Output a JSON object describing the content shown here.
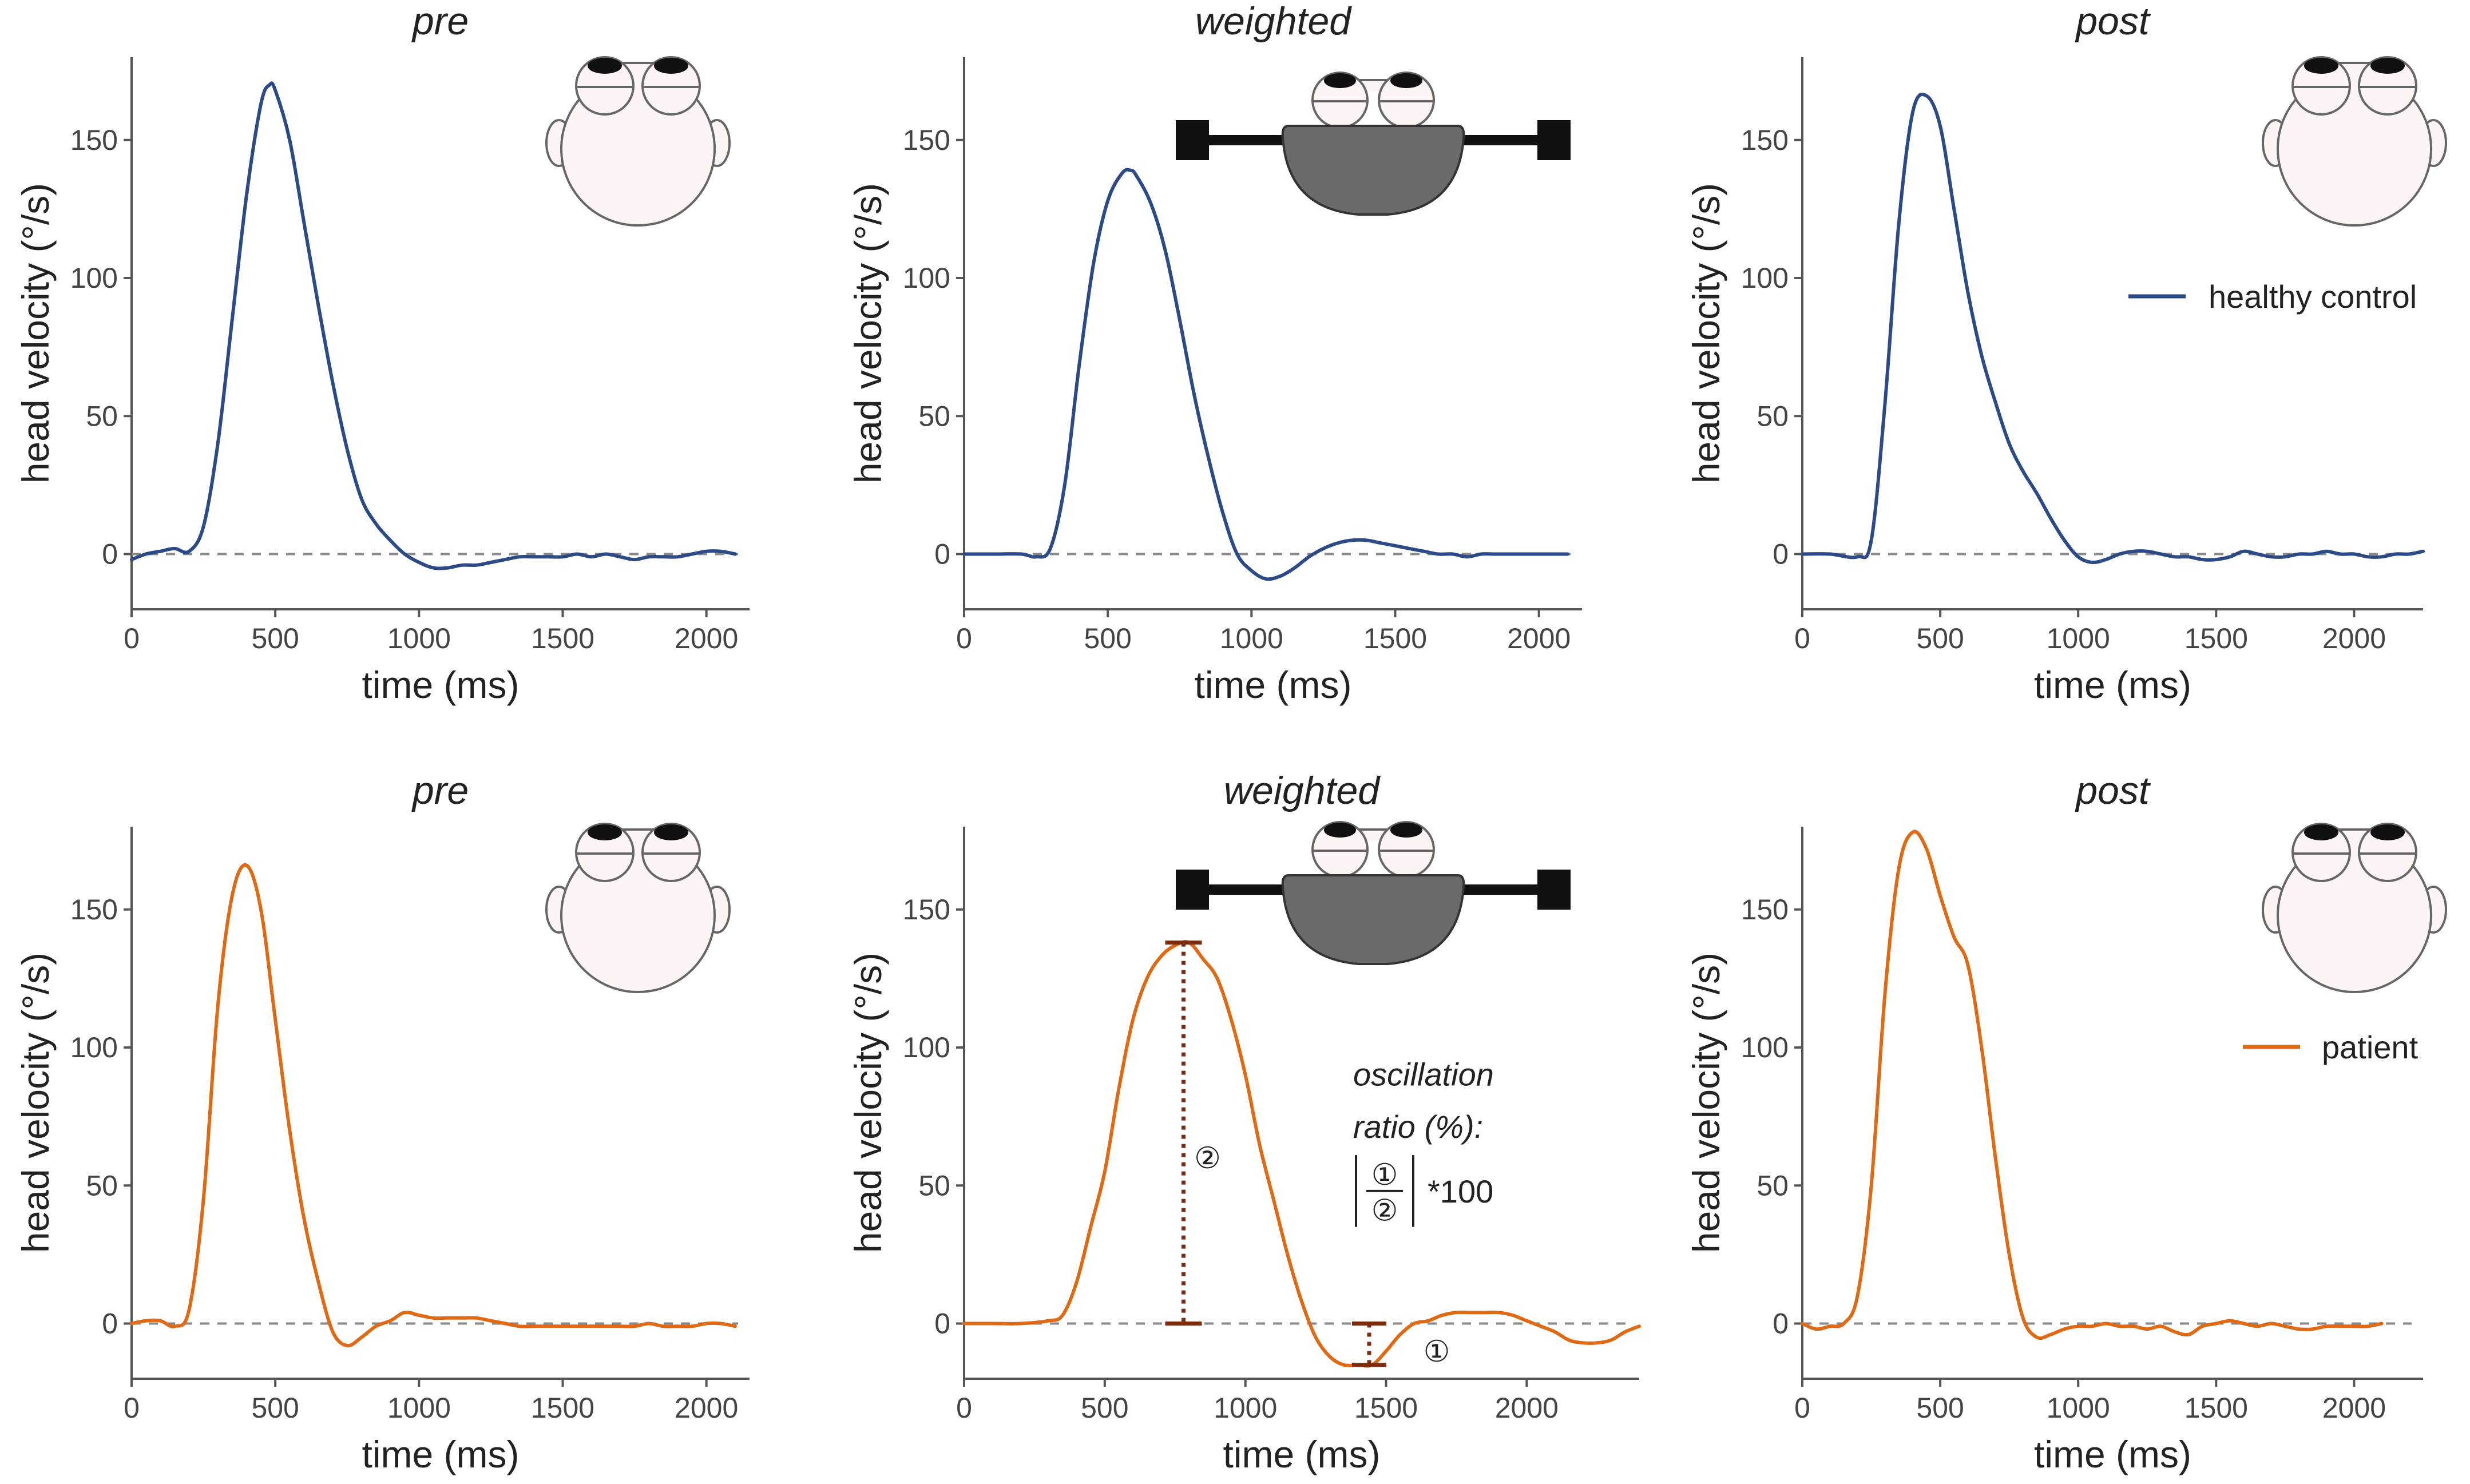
{
  "figure": {
    "colors": {
      "healthy": "#2c4a86",
      "patient": "#e06a14",
      "bracket": "#7a2b0c",
      "zero_line": "#8a8a8a",
      "weight_fill": "#6a6a6a",
      "head_fill": "#fdf5f3"
    },
    "icons": {
      "head": "head-top-view-icon",
      "weight": "weighted-helmet-icon"
    }
  },
  "chart_data": [
    {
      "id": "hc_pre",
      "type": "line",
      "title": "pre",
      "xlabel": "time (ms)",
      "ylabel": "head velocity (°/s)",
      "xlim": [
        0,
        2150
      ],
      "ylim": [
        -20,
        180
      ],
      "xticks": [
        0,
        500,
        1000,
        1500,
        2000
      ],
      "yticks": [
        0,
        50,
        100,
        150
      ],
      "icon": "head",
      "series": [
        {
          "name": "healthy control",
          "color_key": "healthy",
          "x": [
            0,
            50,
            100,
            150,
            200,
            250,
            300,
            350,
            400,
            450,
            480,
            500,
            550,
            600,
            650,
            700,
            750,
            800,
            850,
            900,
            950,
            1000,
            1050,
            1100,
            1150,
            1200,
            1250,
            1300,
            1350,
            1400,
            1450,
            1500,
            1550,
            1600,
            1650,
            1700,
            1750,
            1800,
            1850,
            1900,
            1950,
            2000,
            2050,
            2100
          ],
          "y": [
            -2,
            0,
            1,
            2,
            1,
            10,
            40,
            85,
            130,
            163,
            170,
            168,
            150,
            120,
            90,
            62,
            38,
            20,
            11,
            5,
            0,
            -3,
            -5,
            -5,
            -4,
            -4,
            -3,
            -2,
            -1,
            -1,
            -1,
            -1,
            0,
            -1,
            0,
            -1,
            -2,
            -1,
            -1,
            -1,
            0,
            1,
            1,
            0
          ]
        }
      ]
    },
    {
      "id": "hc_weighted",
      "type": "line",
      "title": "weighted",
      "xlabel": "time (ms)",
      "ylabel": "head velocity (°/s)",
      "xlim": [
        0,
        2150
      ],
      "ylim": [
        -20,
        180
      ],
      "xticks": [
        0,
        500,
        1000,
        1500,
        2000
      ],
      "yticks": [
        0,
        50,
        100,
        150
      ],
      "icon": "weight",
      "series": [
        {
          "name": "healthy control",
          "color_key": "healthy",
          "x": [
            0,
            100,
            200,
            250,
            300,
            350,
            400,
            450,
            500,
            550,
            580,
            600,
            650,
            700,
            750,
            800,
            850,
            900,
            950,
            1000,
            1050,
            1100,
            1150,
            1200,
            1250,
            1300,
            1350,
            1400,
            1450,
            1500,
            1550,
            1600,
            1650,
            1700,
            1750,
            1800,
            1850,
            1900,
            1950,
            2000,
            2050,
            2100
          ],
          "y": [
            0,
            0,
            0,
            -1,
            2,
            25,
            68,
            105,
            128,
            138,
            139,
            137,
            127,
            110,
            85,
            58,
            35,
            15,
            0,
            -6,
            -9,
            -8,
            -5,
            -1,
            2,
            4,
            5,
            5,
            4,
            3,
            2,
            1,
            0,
            0,
            -1,
            0,
            0,
            0,
            0,
            0,
            0,
            0
          ]
        }
      ]
    },
    {
      "id": "hc_post",
      "type": "line",
      "title": "post",
      "xlabel": "time (ms)",
      "ylabel": "head velocity (°/s)",
      "xlim": [
        0,
        2250
      ],
      "ylim": [
        -20,
        180
      ],
      "xticks": [
        0,
        500,
        1000,
        1500,
        2000
      ],
      "yticks": [
        0,
        50,
        100,
        150
      ],
      "icon": "head",
      "series": [
        {
          "name": "healthy control",
          "color_key": "healthy",
          "x": [
            0,
            100,
            200,
            250,
            300,
            350,
            400,
            450,
            500,
            550,
            600,
            650,
            700,
            750,
            800,
            850,
            900,
            950,
            1000,
            1050,
            1100,
            1150,
            1200,
            1250,
            1300,
            1350,
            1400,
            1450,
            1500,
            1550,
            1600,
            1650,
            1700,
            1750,
            1800,
            1850,
            1900,
            1950,
            2000,
            2050,
            2100,
            2150,
            2200,
            2250
          ],
          "y": [
            0,
            0,
            -1,
            5,
            55,
            120,
            160,
            166,
            155,
            125,
            95,
            72,
            55,
            40,
            30,
            22,
            13,
            5,
            -1,
            -3,
            -2,
            0,
            1,
            1,
            0,
            -1,
            -1,
            -2,
            -2,
            -1,
            1,
            0,
            -1,
            -1,
            0,
            0,
            1,
            0,
            0,
            -1,
            -1,
            0,
            0,
            1
          ]
        }
      ]
    },
    {
      "id": "pt_pre",
      "type": "line",
      "title": "pre",
      "xlabel": "time (ms)",
      "ylabel": "head velocity (°/s)",
      "xlim": [
        0,
        2150
      ],
      "ylim": [
        -20,
        180
      ],
      "xticks": [
        0,
        500,
        1000,
        1500,
        2000
      ],
      "yticks": [
        0,
        50,
        100,
        150
      ],
      "icon": "head",
      "series": [
        {
          "name": "patient",
          "color_key": "patient",
          "x": [
            0,
            50,
            100,
            150,
            200,
            250,
            300,
            350,
            400,
            450,
            500,
            550,
            600,
            650,
            700,
            750,
            800,
            850,
            900,
            950,
            1000,
            1050,
            1100,
            1150,
            1200,
            1250,
            1300,
            1350,
            1400,
            1450,
            1500,
            1550,
            1600,
            1650,
            1700,
            1750,
            1800,
            1850,
            1900,
            1950,
            2000,
            2050,
            2100
          ],
          "y": [
            0,
            1,
            1,
            -1,
            5,
            45,
            115,
            155,
            166,
            150,
            110,
            70,
            38,
            15,
            -3,
            -8,
            -5,
            -1,
            1,
            4,
            3,
            2,
            2,
            2,
            2,
            1,
            0,
            -1,
            -1,
            -1,
            -1,
            -1,
            -1,
            -1,
            -1,
            -1,
            0,
            -1,
            -1,
            -1,
            0,
            0,
            -1
          ]
        }
      ]
    },
    {
      "id": "pt_weighted",
      "type": "line",
      "title": "weighted",
      "xlabel": "time (ms)",
      "ylabel": "head velocity (°/s)",
      "xlim": [
        0,
        2400
      ],
      "ylim": [
        -20,
        180
      ],
      "xticks": [
        0,
        500,
        1000,
        1500,
        2000
      ],
      "yticks": [
        0,
        50,
        100,
        150
      ],
      "icon": "weight",
      "annotation": {
        "text_line1": "oscillation",
        "text_line2": "ratio (%):",
        "numerator": "①",
        "denominator": "②",
        "multiplier": "*100",
        "marker_1": "①",
        "marker_2": "②",
        "peak_x": 780,
        "peak_y": 138,
        "trough_x": 1440,
        "trough_y": -15
      },
      "series": [
        {
          "name": "patient",
          "color_key": "patient",
          "x": [
            0,
            100,
            200,
            300,
            350,
            400,
            450,
            500,
            550,
            600,
            650,
            700,
            750,
            800,
            850,
            900,
            950,
            1000,
            1050,
            1100,
            1150,
            1200,
            1250,
            1300,
            1350,
            1400,
            1450,
            1500,
            1550,
            1600,
            1650,
            1700,
            1750,
            1800,
            1850,
            1900,
            1950,
            2000,
            2050,
            2100,
            2150,
            2200,
            2250,
            2300,
            2350,
            2400
          ],
          "y": [
            0,
            0,
            0,
            1,
            3,
            15,
            35,
            55,
            85,
            110,
            125,
            133,
            137,
            138,
            132,
            125,
            110,
            90,
            65,
            45,
            25,
            8,
            -5,
            -12,
            -15,
            -15,
            -15,
            -10,
            -4,
            0,
            1,
            3,
            4,
            4,
            4,
            4,
            3,
            1,
            -1,
            -3,
            -6,
            -7,
            -7,
            -6,
            -3,
            -1
          ]
        }
      ]
    },
    {
      "id": "pt_post",
      "type": "line",
      "title": "post",
      "xlabel": "time (ms)",
      "ylabel": "head velocity (°/s)",
      "xlim": [
        0,
        2250
      ],
      "ylim": [
        -20,
        180
      ],
      "xticks": [
        0,
        500,
        1000,
        1500,
        2000
      ],
      "yticks": [
        0,
        50,
        100,
        150
      ],
      "icon": "head",
      "series": [
        {
          "name": "patient",
          "color_key": "patient",
          "x": [
            0,
            50,
            100,
            150,
            200,
            250,
            300,
            350,
            400,
            450,
            500,
            550,
            600,
            650,
            700,
            750,
            800,
            850,
            900,
            950,
            1000,
            1050,
            1100,
            1150,
            1200,
            1250,
            1300,
            1350,
            1400,
            1450,
            1500,
            1550,
            1600,
            1650,
            1700,
            1750,
            1800,
            1850,
            1900,
            1950,
            2000,
            2050,
            2100
          ],
          "y": [
            0,
            -2,
            -1,
            0,
            10,
            50,
            120,
            165,
            178,
            172,
            155,
            140,
            130,
            100,
            60,
            25,
            2,
            -5,
            -4,
            -2,
            -1,
            -1,
            0,
            -1,
            -1,
            -2,
            -1,
            -3,
            -4,
            -1,
            0,
            1,
            0,
            -1,
            0,
            -1,
            -2,
            -2,
            -1,
            -1,
            -1,
            -1,
            0
          ]
        }
      ]
    }
  ],
  "legends": [
    {
      "label": "healthy control",
      "color_key": "healthy"
    },
    {
      "label": "patient",
      "color_key": "patient"
    }
  ]
}
